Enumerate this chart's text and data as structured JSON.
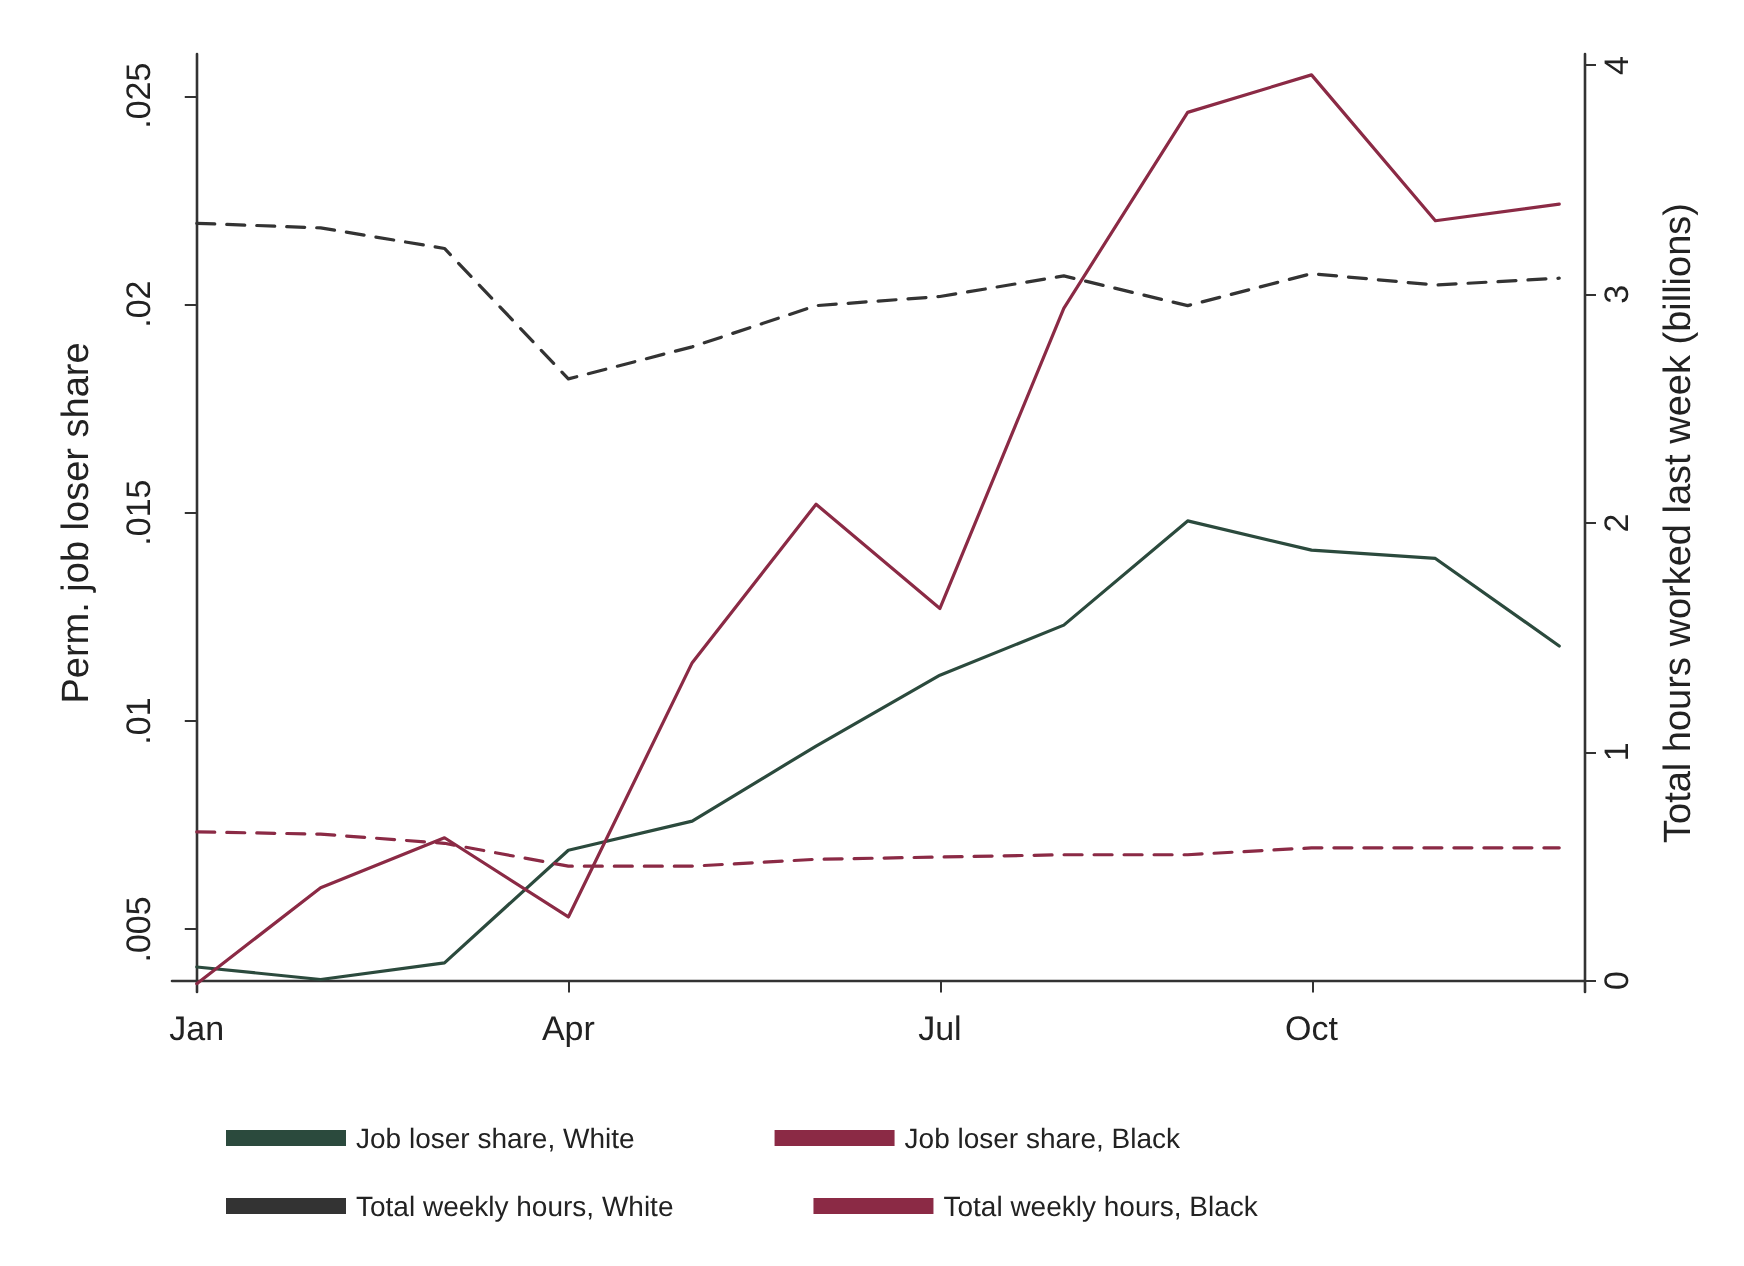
{
  "chart_data": {
    "type": "line",
    "ylabel": "Perm. job loser share",
    "y2label": "Total hours worked last week (billions)",
    "categories": [
      "Jan",
      null,
      null,
      "Apr",
      null,
      null,
      "Jul",
      null,
      null,
      "Oct",
      null,
      null
    ],
    "ylim": [
      0.0035,
      0.026
    ],
    "yticks": [
      {
        "value": 0.005,
        "label": ".005"
      },
      {
        "value": 0.01,
        "label": ".01"
      },
      {
        "value": 0.015,
        "label": ".015"
      },
      {
        "value": 0.02,
        "label": ".02"
      },
      {
        "value": 0.025,
        "label": ".025"
      }
    ],
    "y2lim": [
      -0.05,
      4.05
    ],
    "y2ticks": [
      0,
      1,
      2,
      3,
      4
    ],
    "grid": false,
    "legend": "bottom",
    "marker": "none",
    "series": [
      {
        "name": "Job loser share, White",
        "color": "#2b4a3d",
        "line_style": "solid",
        "values": [
          0.0041,
          0.0038,
          0.0042,
          0.0069,
          0.0076,
          0.0094,
          0.0111,
          0.0123,
          0.0148,
          0.0141,
          0.0139,
          0.0118
        ]
      },
      {
        "name": "Job loser share, Black",
        "color": "#8b2a45",
        "line_style": "solid",
        "values": [
          0.0037,
          0.006,
          0.0072,
          0.0053,
          0.0114,
          0.0152,
          0.0127,
          0.0199,
          0.0246,
          0.0255,
          0.022,
          0.0224
        ]
      },
      {
        "name": "Total weekly hours, White",
        "color": "#333333",
        "line_style": "dashed",
        "axis": "y2",
        "values": [
          3.31,
          3.29,
          3.2,
          2.63,
          2.77,
          2.95,
          2.99,
          3.08,
          2.95,
          3.09,
          3.04,
          3.07
        ]
      },
      {
        "name": "Total weekly hours, Black",
        "color": "#8b2a45",
        "line_style": "dashed",
        "axis": "y2",
        "values": [
          0.65,
          0.64,
          0.6,
          0.5,
          0.5,
          0.53,
          0.54,
          0.55,
          0.55,
          0.58,
          0.58,
          0.58
        ]
      }
    ]
  }
}
